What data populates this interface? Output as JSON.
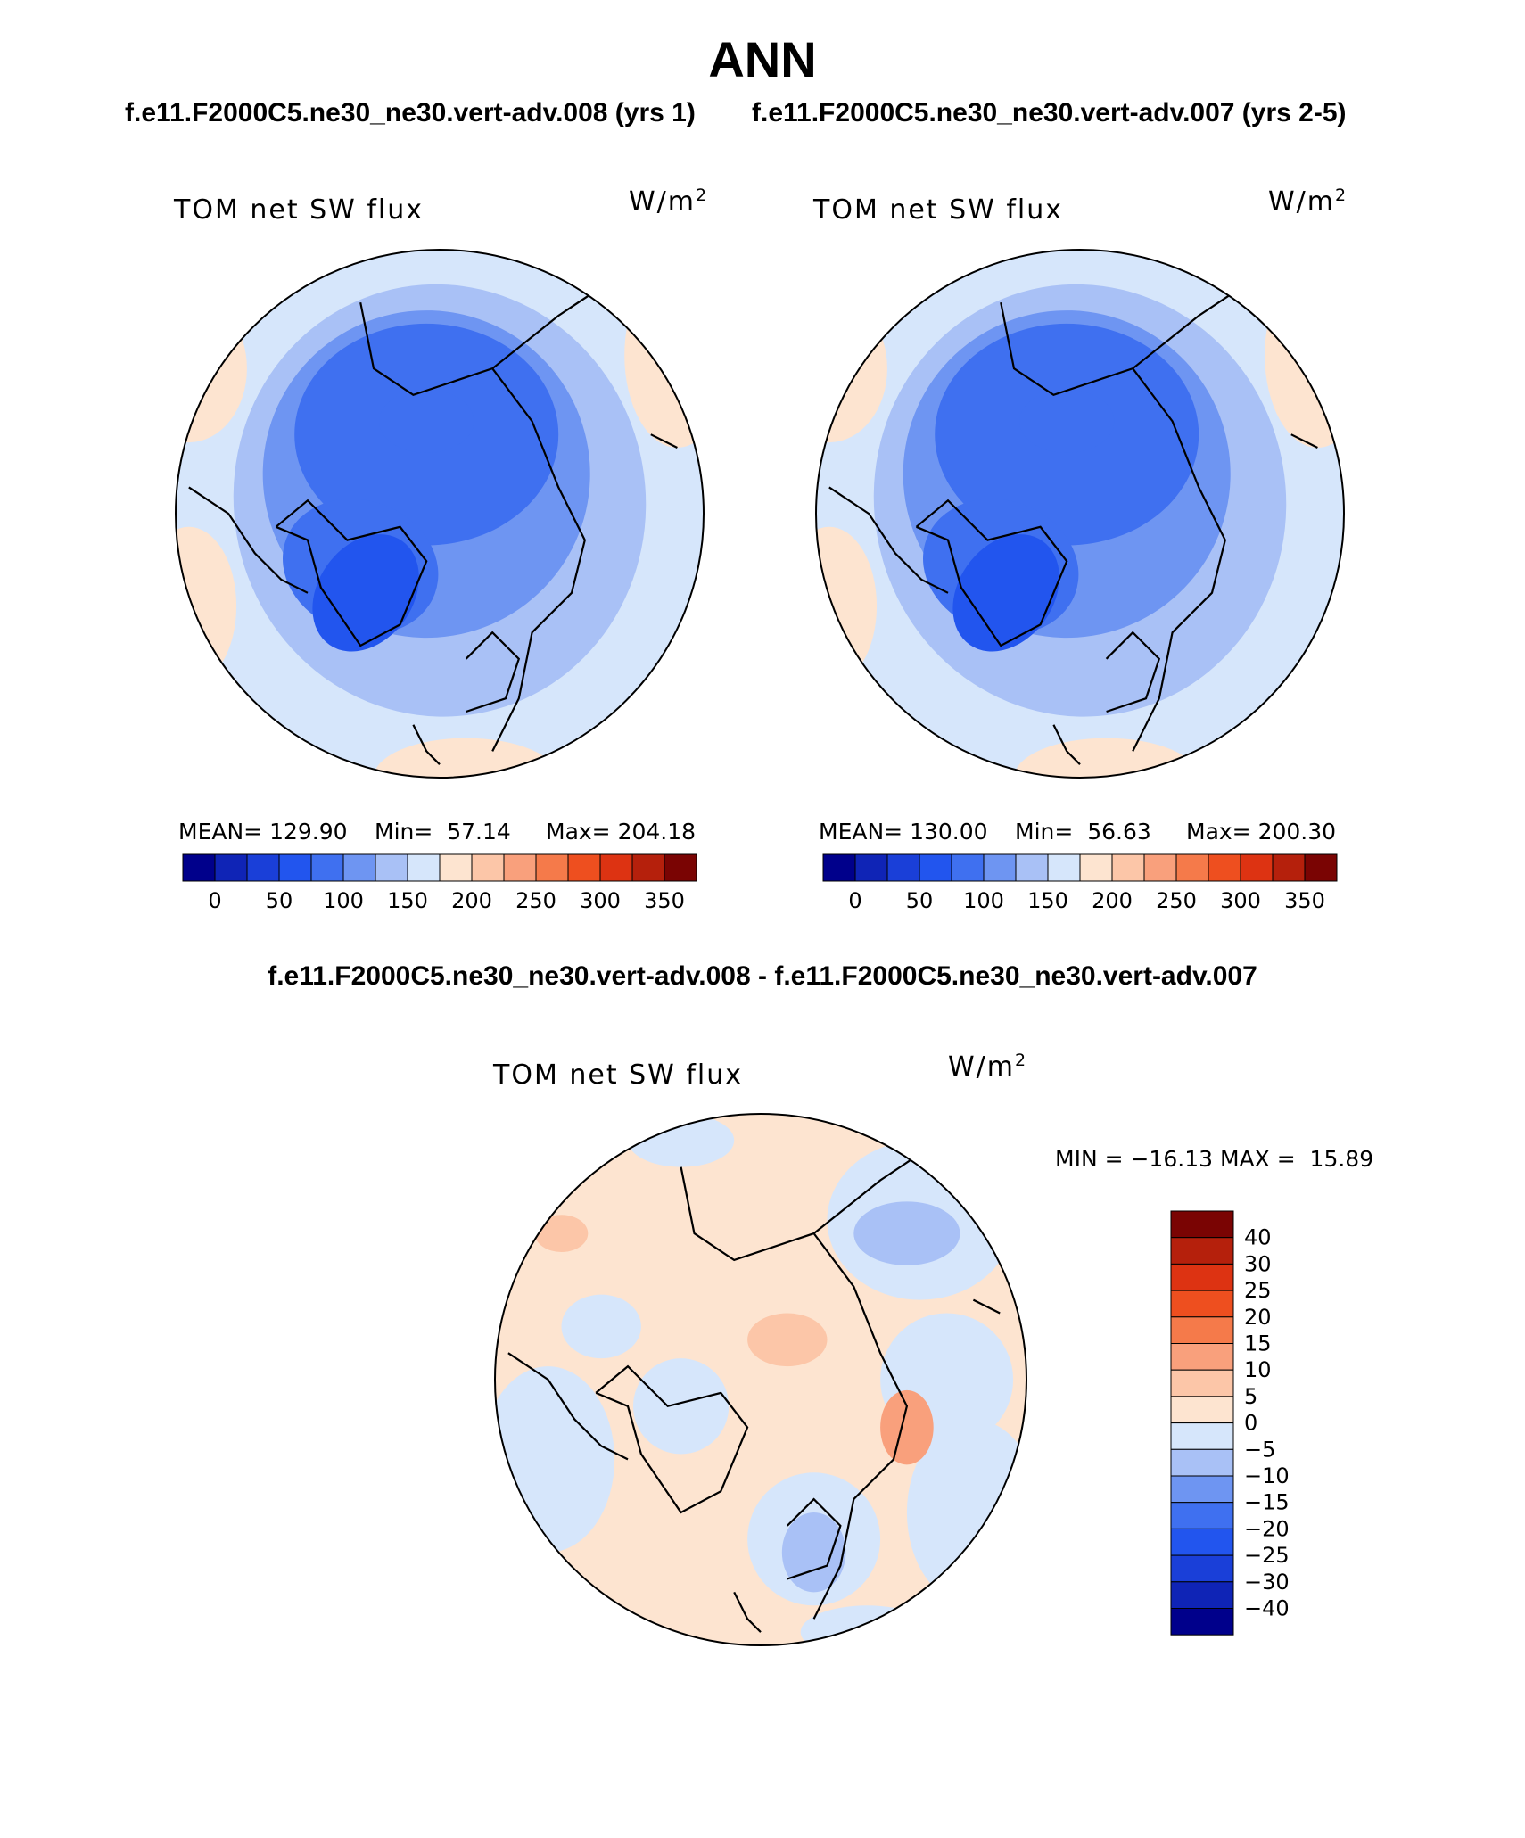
{
  "title": "ANN",
  "case_titles": {
    "left": "f.e11.F2000C5.ne30_ne30.vert-adv.008 (yrs 1)",
    "right": "f.e11.F2000C5.ne30_ne30.vert-adv.007 (yrs 2-5)"
  },
  "diff_title": "f.e11.F2000C5.ne30_ne30.vert-adv.008 - f.e11.F2000C5.ne30_ne30.vert-adv.007",
  "panels": [
    {
      "label": "TOM net SW flux",
      "units": "W/m",
      "units_sup": "2",
      "mean": "MEAN= 129.90",
      "min": "Min=  57.14",
      "max": "Max= 204.18"
    },
    {
      "label": "TOM net SW flux",
      "units": "W/m",
      "units_sup": "2",
      "mean": "MEAN= 130.00",
      "min": "Min=  56.63",
      "max": "Max= 200.30"
    },
    {
      "label": "TOM net SW flux",
      "units": "W/m",
      "units_sup": "2",
      "minmax": "MIN = −16.13 MAX =  15.89"
    }
  ],
  "chart_data": [
    {
      "type": "heatmap",
      "projection": "north polar stereographic",
      "field": "TOM net SW flux",
      "units": "W/m2",
      "mean": 129.9,
      "min": 57.14,
      "max": 204.18,
      "colorbar_levels": [
        0,
        25,
        50,
        75,
        100,
        125,
        150,
        175,
        200,
        225,
        250,
        275,
        300,
        325,
        350
      ],
      "colorbar_tick_labels": [
        "0",
        "50",
        "100",
        "150",
        "200",
        "250",
        "300",
        "350"
      ],
      "colorbar_colors": [
        "#00008b",
        "#0f24b6",
        "#1a3fd8",
        "#2255ee",
        "#3f70f0",
        "#6e95f2",
        "#a9c1f6",
        "#d6e6fb",
        "#fde4d0",
        "#fcc6a8",
        "#f9a07c",
        "#f57a4a",
        "#ee4f1f",
        "#dd3312",
        "#b5200c",
        "#7a0403"
      ]
    },
    {
      "type": "heatmap",
      "projection": "north polar stereographic",
      "field": "TOM net SW flux",
      "units": "W/m2",
      "mean": 130.0,
      "min": 56.63,
      "max": 200.3,
      "colorbar_levels": [
        0,
        25,
        50,
        75,
        100,
        125,
        150,
        175,
        200,
        225,
        250,
        275,
        300,
        325,
        350
      ],
      "colorbar_tick_labels": [
        "0",
        "50",
        "100",
        "150",
        "200",
        "250",
        "300",
        "350"
      ],
      "colorbar_colors": [
        "#00008b",
        "#0f24b6",
        "#1a3fd8",
        "#2255ee",
        "#3f70f0",
        "#6e95f2",
        "#a9c1f6",
        "#d6e6fb",
        "#fde4d0",
        "#fcc6a8",
        "#f9a07c",
        "#f57a4a",
        "#ee4f1f",
        "#dd3312",
        "#b5200c",
        "#7a0403"
      ]
    },
    {
      "type": "heatmap",
      "projection": "north polar stereographic",
      "field": "TOM net SW flux",
      "units": "W/m2",
      "min": -16.13,
      "max": 15.89,
      "colorbar_levels": [
        -40,
        -30,
        -25,
        -20,
        -15,
        -10,
        -5,
        0,
        5,
        10,
        15,
        20,
        25,
        30,
        40
      ],
      "colorbar_tick_labels": [
        "40",
        "30",
        "25",
        "20",
        "15",
        "10",
        "5",
        "0",
        "−5",
        "−10",
        "−15",
        "−20",
        "−25",
        "−30",
        "−40"
      ],
      "colorbar_colors": [
        "#7a0403",
        "#b5200c",
        "#dd3312",
        "#ee4f1f",
        "#f57a4a",
        "#f9a07c",
        "#fcc6a8",
        "#fde4d0",
        "#d6e6fb",
        "#a9c1f6",
        "#6e95f2",
        "#3f70f0",
        "#2255ee",
        "#1a3fd8",
        "#0f24b6",
        "#00008b"
      ]
    }
  ]
}
